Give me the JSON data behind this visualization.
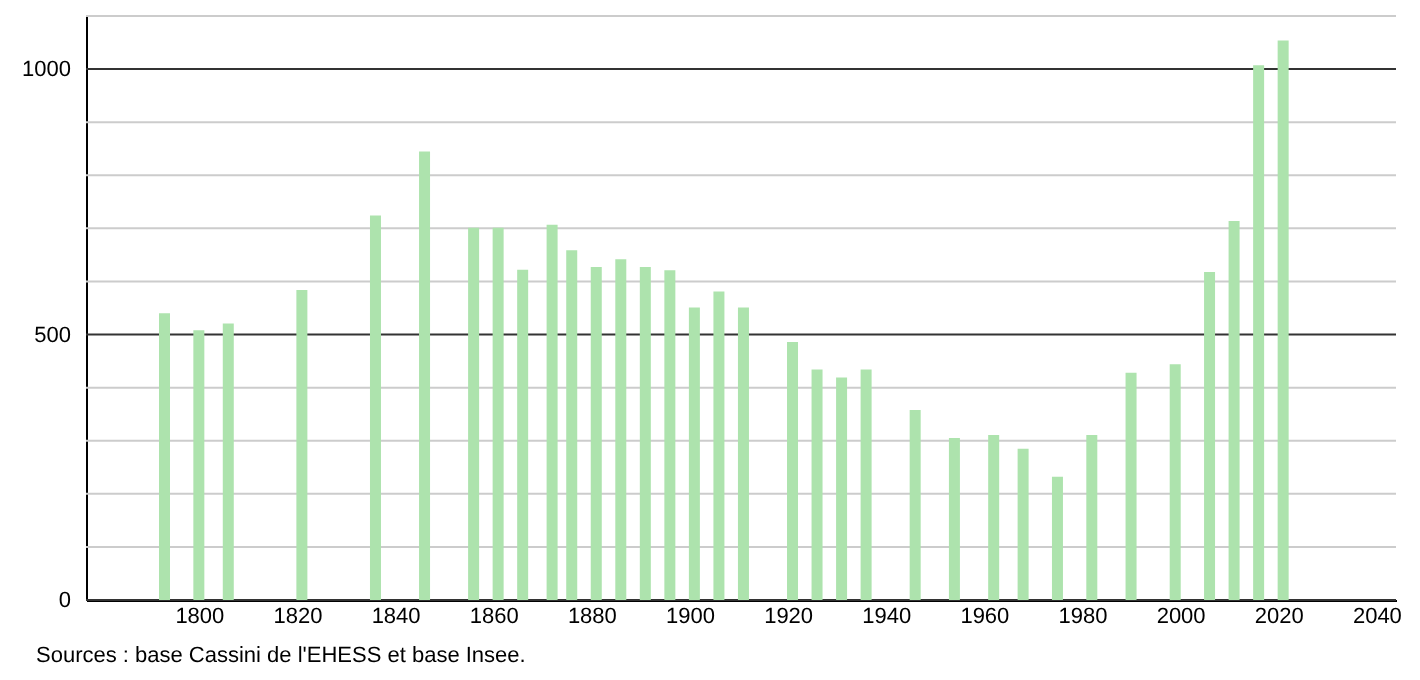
{
  "chart_data": {
    "type": "bar",
    "x": [
      1793,
      1800,
      1806,
      1821,
      1836,
      1846,
      1856,
      1861,
      1866,
      1872,
      1876,
      1881,
      1886,
      1891,
      1896,
      1901,
      1906,
      1911,
      1921,
      1926,
      1931,
      1936,
      1946,
      1954,
      1962,
      1968,
      1975,
      1982,
      1990,
      1999,
      2006,
      2011,
      2016,
      2021
    ],
    "series": [
      {
        "color": "#ade3ad",
        "values": [
          540,
          508,
          521,
          584,
          724,
          845,
          701,
          701,
          622,
          707,
          659,
          627,
          642,
          627,
          621,
          551,
          581,
          551,
          486,
          434,
          419,
          434,
          358,
          305,
          311,
          285,
          232,
          311,
          428,
          444,
          618,
          714,
          1007,
          1054
        ]
      }
    ],
    "xlim": [
      1777,
      2044
    ],
    "xticks": [
      1800,
      1820,
      1840,
      1860,
      1880,
      1900,
      1920,
      1940,
      1960,
      1980,
      2000,
      2020,
      2040
    ],
    "ylim": [
      0,
      1100
    ],
    "yticks": [
      0,
      {
        "value": 100,
        "label": null
      },
      {
        "value": 200,
        "label": null
      },
      {
        "value": 300,
        "label": null
      },
      {
        "value": 400,
        "label": null
      },
      500,
      {
        "value": 600,
        "label": null
      },
      {
        "value": 700,
        "label": null
      },
      {
        "value": 800,
        "label": null
      },
      {
        "value": 900,
        "label": null
      },
      1000,
      {
        "value": 1100,
        "label": null
      }
    ],
    "grid": "y",
    "annotations": [
      "Sources : base Cassini de l'EHESS et base Insee."
    ]
  }
}
